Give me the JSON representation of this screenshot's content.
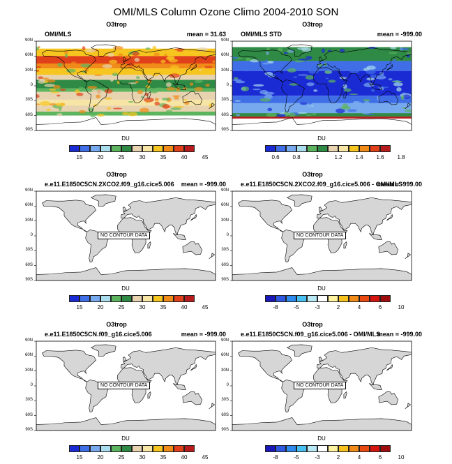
{
  "title": "OMI/MLS Column Ozone Climo 2004-2010 SON",
  "colorbars": {
    "abs": {
      "colors": [
        "#1b2bd4",
        "#3f6ee6",
        "#77a9ef",
        "#a9dcec",
        "#5cb55e",
        "#2f8a45",
        "#e8d3b0",
        "#f6e5a4",
        "#f7c51f",
        "#f08a18",
        "#e1411a",
        "#b61c1d"
      ],
      "ticks": [
        "15",
        "20",
        "25",
        "30",
        "35",
        "40",
        "45"
      ]
    },
    "std": {
      "colors": [
        "#1b2bd4",
        "#3f6ee6",
        "#77a9ef",
        "#a9dcec",
        "#5cb55e",
        "#2f8a45",
        "#e8d3b0",
        "#f6e5a4",
        "#f7c51f",
        "#f08a18",
        "#e1411a",
        "#b61c1d"
      ],
      "ticks": [
        "0.6",
        "0.8",
        "1",
        "1.2",
        "1.4",
        "1.6",
        "1.8"
      ]
    },
    "diff": {
      "colors": [
        "#1a18b8",
        "#2e58e0",
        "#2d8bf0",
        "#47bff0",
        "#b8e8f4",
        "#ffffff",
        "#fff3a0",
        "#f8c21e",
        "#f08a18",
        "#e84a12",
        "#d4150f",
        "#9e0d0d"
      ],
      "ticks": [
        "-8",
        "-5",
        "-3",
        "2",
        "4",
        "6",
        "10"
      ]
    }
  },
  "lat_labels": [
    "90N",
    "60N",
    "30N",
    "0",
    "30S",
    "60S",
    "90S"
  ],
  "panels": [
    {
      "title": "O3trop",
      "left_label": "OMI/MLS",
      "mean": "mean =  31.63",
      "units": "DU",
      "cbar": "abs",
      "filled": true,
      "nodata": ""
    },
    {
      "title": "O3trop",
      "left_label": "OMI/MLS STD",
      "mean": "mean = -999.00",
      "units": "DU",
      "cbar": "std",
      "filled": true,
      "nodata": ""
    },
    {
      "title": "O3trop",
      "left_label": "e.e11.E1850C5CN.2XCO2.f09_g16.cice5.006",
      "mean": "mean = -999.00",
      "units": "DU",
      "cbar": "abs",
      "filled": false,
      "nodata": "NO CONTOUR DATA"
    },
    {
      "title": "O3trop",
      "left_label": "e.e11.E1850C5CN.2XCO2.f09_g16.cice5.006 - OMI/MLS",
      "mean": "mean = -999.00",
      "units": "DU",
      "cbar": "diff",
      "filled": false,
      "nodata": "NO CONTOUR DATA"
    },
    {
      "title": "O3trop",
      "left_label": "e.e11.E1850C5CN.f09_g16.cice5.006",
      "mean": "mean = -999.00",
      "units": "DU",
      "cbar": "abs",
      "filled": false,
      "nodata": "NO CONTOUR DATA"
    },
    {
      "title": "O3trop",
      "left_label": "e.e11.E1850C5CN.f09_g16.cice5.006 - OMI/MLS",
      "mean": "mean = -999.00",
      "units": "DU",
      "cbar": "diff",
      "filled": false,
      "nodata": "NO CONTOUR DATA"
    }
  ]
}
